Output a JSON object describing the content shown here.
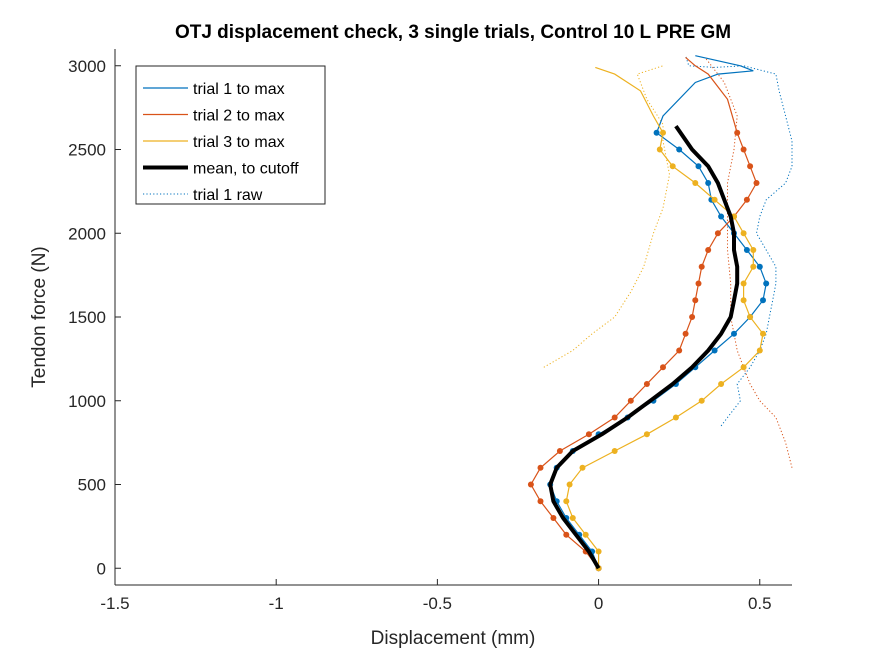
{
  "chart_data": {
    "type": "line",
    "title": "OTJ displacement check, 3 single trials, Control 10 L PRE GM",
    "xlabel": "Displacement (mm)",
    "ylabel": "Tendon force (N)",
    "xlim": [
      -1.5,
      0.6
    ],
    "ylim": [
      -100,
      3100
    ],
    "xticks": [
      -1.5,
      -1,
      -0.5,
      0,
      0.5
    ],
    "xtick_labels": [
      "-1.5",
      "-1",
      "-0.5",
      "0",
      "0.5"
    ],
    "yticks": [
      0,
      500,
      1000,
      1500,
      2000,
      2500,
      3000
    ],
    "ytick_labels": [
      "0",
      "500",
      "1000",
      "1500",
      "2000",
      "2500",
      "3000"
    ],
    "grid": false,
    "legend_position": "top-left",
    "series": [
      {
        "name": "trial 1 to max",
        "color": "#0072BD",
        "style": "solid-markers",
        "points": [
          [
            0,
            0
          ],
          [
            -0.02,
            100
          ],
          [
            -0.06,
            200
          ],
          [
            -0.1,
            300
          ],
          [
            -0.13,
            400
          ],
          [
            -0.15,
            500
          ],
          [
            -0.13,
            600
          ],
          [
            -0.08,
            700
          ],
          [
            0,
            800
          ],
          [
            0.09,
            900
          ],
          [
            0.17,
            1000
          ],
          [
            0.24,
            1100
          ],
          [
            0.3,
            1200
          ],
          [
            0.36,
            1300
          ],
          [
            0.42,
            1400
          ],
          [
            0.47,
            1500
          ],
          [
            0.51,
            1600
          ],
          [
            0.52,
            1700
          ],
          [
            0.5,
            1800
          ],
          [
            0.46,
            1900
          ],
          [
            0.42,
            2000
          ],
          [
            0.38,
            2100
          ],
          [
            0.35,
            2200
          ],
          [
            0.34,
            2300
          ],
          [
            0.31,
            2400
          ],
          [
            0.25,
            2500
          ],
          [
            0.18,
            2600
          ],
          [
            0.2,
            2700
          ],
          [
            0.3,
            2900
          ],
          [
            0.37,
            2950
          ],
          [
            0.48,
            2970
          ],
          [
            0.44,
            3000
          ],
          [
            0.3,
            3060
          ]
        ]
      },
      {
        "name": "trial 2 to max",
        "color": "#D95319",
        "style": "solid-markers",
        "points": [
          [
            0,
            0
          ],
          [
            -0.04,
            100
          ],
          [
            -0.1,
            200
          ],
          [
            -0.14,
            300
          ],
          [
            -0.18,
            400
          ],
          [
            -0.21,
            500
          ],
          [
            -0.18,
            600
          ],
          [
            -0.12,
            700
          ],
          [
            -0.03,
            800
          ],
          [
            0.05,
            900
          ],
          [
            0.1,
            1000
          ],
          [
            0.15,
            1100
          ],
          [
            0.2,
            1200
          ],
          [
            0.25,
            1300
          ],
          [
            0.27,
            1400
          ],
          [
            0.29,
            1500
          ],
          [
            0.3,
            1600
          ],
          [
            0.31,
            1700
          ],
          [
            0.32,
            1800
          ],
          [
            0.34,
            1900
          ],
          [
            0.37,
            2000
          ],
          [
            0.42,
            2100
          ],
          [
            0.46,
            2200
          ],
          [
            0.49,
            2300
          ],
          [
            0.47,
            2400
          ],
          [
            0.45,
            2500
          ],
          [
            0.43,
            2600
          ],
          [
            0.4,
            2800
          ],
          [
            0.34,
            2950
          ],
          [
            0.3,
            3000
          ],
          [
            0.27,
            3050
          ]
        ]
      },
      {
        "name": "trial 3 to max",
        "color": "#EDB120",
        "style": "solid-markers",
        "points": [
          [
            0,
            0
          ],
          [
            0,
            100
          ],
          [
            -0.04,
            200
          ],
          [
            -0.08,
            300
          ],
          [
            -0.1,
            400
          ],
          [
            -0.09,
            500
          ],
          [
            -0.05,
            600
          ],
          [
            0.05,
            700
          ],
          [
            0.15,
            800
          ],
          [
            0.24,
            900
          ],
          [
            0.32,
            1000
          ],
          [
            0.38,
            1100
          ],
          [
            0.45,
            1200
          ],
          [
            0.5,
            1300
          ],
          [
            0.51,
            1400
          ],
          [
            0.47,
            1500
          ],
          [
            0.45,
            1600
          ],
          [
            0.45,
            1700
          ],
          [
            0.48,
            1800
          ],
          [
            0.48,
            1900
          ],
          [
            0.45,
            2000
          ],
          [
            0.42,
            2100
          ],
          [
            0.36,
            2200
          ],
          [
            0.3,
            2300
          ],
          [
            0.23,
            2400
          ],
          [
            0.19,
            2500
          ],
          [
            0.2,
            2600
          ],
          [
            0.17,
            2700
          ],
          [
            0.13,
            2850
          ],
          [
            0.05,
            2950
          ],
          [
            -0.01,
            2990
          ]
        ]
      },
      {
        "name": "mean, to cutoff",
        "color": "#000000",
        "style": "thick",
        "points": [
          [
            0,
            0
          ],
          [
            -0.03,
            100
          ],
          [
            -0.07,
            200
          ],
          [
            -0.11,
            300
          ],
          [
            -0.14,
            400
          ],
          [
            -0.15,
            500
          ],
          [
            -0.13,
            600
          ],
          [
            -0.08,
            700
          ],
          [
            0.01,
            800
          ],
          [
            0.09,
            900
          ],
          [
            0.16,
            1000
          ],
          [
            0.23,
            1100
          ],
          [
            0.29,
            1200
          ],
          [
            0.34,
            1300
          ],
          [
            0.38,
            1400
          ],
          [
            0.41,
            1500
          ],
          [
            0.42,
            1600
          ],
          [
            0.43,
            1700
          ],
          [
            0.43,
            1800
          ],
          [
            0.42,
            1900
          ],
          [
            0.42,
            2000
          ],
          [
            0.41,
            2100
          ],
          [
            0.39,
            2200
          ],
          [
            0.37,
            2300
          ],
          [
            0.34,
            2400
          ],
          [
            0.29,
            2500
          ],
          [
            0.24,
            2640
          ]
        ]
      },
      {
        "name": "trial 1 raw",
        "color": "#0072BD",
        "style": "dotted",
        "points": [
          [
            0.38,
            850
          ],
          [
            0.4,
            900
          ],
          [
            0.44,
            1000
          ],
          [
            0.43,
            1100
          ],
          [
            0.47,
            1200
          ],
          [
            0.5,
            1300
          ],
          [
            0.52,
            1400
          ],
          [
            0.53,
            1500
          ],
          [
            0.54,
            1600
          ],
          [
            0.55,
            1700
          ],
          [
            0.55,
            1800
          ],
          [
            0.52,
            1900
          ],
          [
            0.49,
            2000
          ],
          [
            0.5,
            2100
          ],
          [
            0.52,
            2200
          ],
          [
            0.58,
            2300
          ],
          [
            0.6,
            2400
          ],
          [
            0.6,
            2550
          ],
          [
            0.58,
            2700
          ],
          [
            0.56,
            2850
          ],
          [
            0.55,
            2950
          ],
          [
            0.45,
            3000
          ],
          [
            0.36,
            2990
          ],
          [
            0.28,
            3000
          ],
          [
            0.27,
            3060
          ]
        ]
      },
      {
        "name": "",
        "color": "#D95319",
        "style": "dotted",
        "points": [
          [
            0.6,
            600
          ],
          [
            0.58,
            750
          ],
          [
            0.55,
            900
          ],
          [
            0.5,
            1000
          ],
          [
            0.47,
            1100
          ],
          [
            0.45,
            1200
          ],
          [
            0.43,
            1300
          ],
          [
            0.42,
            1400
          ],
          [
            0.41,
            1500
          ],
          [
            0.41,
            1700
          ],
          [
            0.4,
            1900
          ],
          [
            0.4,
            2100
          ],
          [
            0.4,
            2300
          ],
          [
            0.42,
            2500
          ],
          [
            0.43,
            2700
          ],
          [
            0.39,
            2900
          ],
          [
            0.33,
            3050
          ]
        ]
      },
      {
        "name": "",
        "color": "#EDB120",
        "style": "dotted",
        "points": [
          [
            -0.17,
            1200
          ],
          [
            -0.08,
            1300
          ],
          [
            -0.02,
            1400
          ],
          [
            0.05,
            1500
          ],
          [
            0.1,
            1650
          ],
          [
            0.14,
            1800
          ],
          [
            0.17,
            2000
          ],
          [
            0.2,
            2150
          ],
          [
            0.22,
            2350
          ],
          [
            0.2,
            2550
          ],
          [
            0.2,
            2650
          ],
          [
            0.15,
            2800
          ],
          [
            0.12,
            2950
          ],
          [
            0.2,
            3000
          ]
        ]
      }
    ]
  }
}
